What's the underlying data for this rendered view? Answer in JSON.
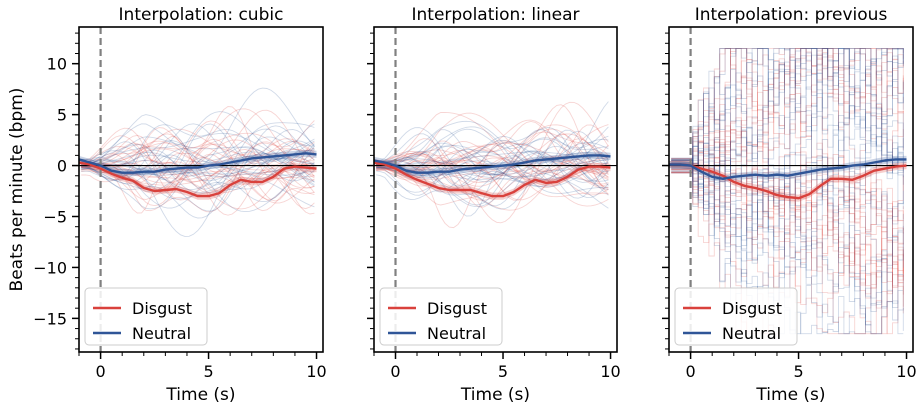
{
  "chart_data": [
    {
      "type": "line",
      "title": "Interpolation: cubic",
      "xlabel": "Time (s)",
      "ylabel": "Beats per minute (bpm)",
      "xlim": [
        -1,
        10.3
      ],
      "ylim": [
        -18.3,
        13.6
      ],
      "xticks": [
        0,
        5,
        10
      ],
      "yticks": [
        -15,
        -10,
        -5,
        0,
        5,
        10
      ],
      "legend": {
        "position": "lower-left",
        "entries": [
          "Disgust",
          "Neutral"
        ]
      },
      "reference_lines": {
        "vertical_dashed_x": 0,
        "horizontal_y": 0
      },
      "series": [
        {
          "name": "Disgust",
          "color": "#d9413c",
          "x": [
            -1,
            -0.5,
            0,
            0.5,
            1,
            1.5,
            2,
            2.5,
            3,
            3.5,
            4,
            4.5,
            5,
            5.5,
            6,
            6.5,
            7,
            7.5,
            8,
            8.5,
            9,
            9.5,
            10
          ],
          "values": [
            0.3,
            0.1,
            -0.3,
            -0.8,
            -1.2,
            -1.5,
            -2.2,
            -2.5,
            -2.4,
            -2.3,
            -2.6,
            -3.0,
            -3.0,
            -2.7,
            -1.9,
            -1.4,
            -1.6,
            -1.6,
            -1.1,
            -0.3,
            -0.1,
            -0.2,
            -0.3
          ]
        },
        {
          "name": "Neutral",
          "color": "#2f5597",
          "x": [
            -1,
            -0.5,
            0,
            0.5,
            1,
            1.5,
            2,
            2.5,
            3,
            3.5,
            4,
            4.5,
            5,
            5.5,
            6,
            6.5,
            7,
            7.5,
            8,
            8.5,
            9,
            9.5,
            10
          ],
          "values": [
            0.6,
            0.3,
            0.0,
            -0.5,
            -0.7,
            -0.7,
            -0.6,
            -0.6,
            -0.4,
            -0.3,
            -0.2,
            -0.2,
            0.0,
            0.1,
            0.3,
            0.5,
            0.7,
            0.8,
            0.9,
            1.0,
            1.1,
            1.2,
            1.1
          ]
        }
      ]
    },
    {
      "type": "line",
      "title": "Interpolation: linear",
      "xlabel": "Time (s)",
      "ylabel": "",
      "xlim": [
        -1,
        10.3
      ],
      "ylim": [
        -18.3,
        13.6
      ],
      "xticks": [
        0,
        5,
        10
      ],
      "yticks": [
        -15,
        -10,
        -5,
        0,
        5,
        10
      ],
      "legend": {
        "position": "lower-left",
        "entries": [
          "Disgust",
          "Neutral"
        ]
      },
      "reference_lines": {
        "vertical_dashed_x": 0,
        "horizontal_y": 0
      },
      "series": [
        {
          "name": "Disgust",
          "color": "#d9413c",
          "x": [
            -1,
            -0.5,
            0,
            0.5,
            1,
            1.5,
            2,
            2.5,
            3,
            3.5,
            4,
            4.5,
            5,
            5.5,
            6,
            6.5,
            7,
            7.5,
            8,
            8.5,
            9,
            9.5,
            10
          ],
          "values": [
            0.3,
            0.1,
            -0.3,
            -0.9,
            -1.4,
            -1.8,
            -2.2,
            -2.4,
            -2.4,
            -2.4,
            -2.7,
            -3.0,
            -3.0,
            -2.6,
            -1.9,
            -1.4,
            -1.7,
            -1.6,
            -1.1,
            -0.4,
            -0.1,
            -0.1,
            -0.2
          ]
        },
        {
          "name": "Neutral",
          "color": "#2f5597",
          "x": [
            -1,
            -0.5,
            0,
            0.5,
            1,
            1.5,
            2,
            2.5,
            3,
            3.5,
            4,
            4.5,
            5,
            5.5,
            6,
            6.5,
            7,
            7.5,
            8,
            8.5,
            9,
            9.5,
            10
          ],
          "values": [
            0.5,
            0.3,
            0.0,
            -0.5,
            -0.7,
            -0.7,
            -0.6,
            -0.6,
            -0.4,
            -0.3,
            -0.2,
            -0.1,
            0.0,
            0.1,
            0.3,
            0.5,
            0.6,
            0.7,
            0.8,
            0.9,
            1.0,
            1.0,
            0.9
          ]
        }
      ]
    },
    {
      "type": "line",
      "title": "Interpolation: previous",
      "xlabel": "Time (s)",
      "ylabel": "",
      "xlim": [
        -1,
        10.3
      ],
      "ylim": [
        -18.3,
        13.6
      ],
      "xticks": [
        0,
        5,
        10
      ],
      "yticks": [
        -15,
        -10,
        -5,
        0,
        5,
        10
      ],
      "legend": {
        "position": "lower-left",
        "entries": [
          "Disgust",
          "Neutral"
        ]
      },
      "reference_lines": {
        "vertical_dashed_x": 0,
        "horizontal_y": 0
      },
      "series": [
        {
          "name": "Disgust",
          "color": "#d9413c",
          "x": [
            -1,
            -0.5,
            0,
            0.5,
            1,
            1.5,
            2,
            2.5,
            3,
            3.5,
            4,
            4.5,
            5,
            5.5,
            6,
            6.5,
            7,
            7.5,
            8,
            8.5,
            9,
            9.5,
            10
          ],
          "values": [
            0.1,
            0.1,
            0.0,
            -0.3,
            -0.6,
            -1.0,
            -1.6,
            -2.0,
            -2.2,
            -2.5,
            -2.9,
            -3.1,
            -3.2,
            -2.8,
            -2.0,
            -1.3,
            -1.3,
            -1.4,
            -1.0,
            -0.5,
            -0.3,
            -0.1,
            0.0
          ]
        },
        {
          "name": "Neutral",
          "color": "#2f5597",
          "x": [
            -1,
            -0.5,
            0,
            0.5,
            1,
            1.5,
            2,
            2.5,
            3,
            3.5,
            4,
            4.5,
            5,
            5.5,
            6,
            6.5,
            7,
            7.5,
            8,
            8.5,
            9,
            9.5,
            10
          ],
          "values": [
            0.1,
            0.1,
            0.0,
            -0.6,
            -1.1,
            -1.3,
            -1.1,
            -1.0,
            -0.9,
            -1.0,
            -0.9,
            -1.0,
            -0.8,
            -0.6,
            -0.4,
            -0.3,
            -0.2,
            0.0,
            0.1,
            0.3,
            0.5,
            0.6,
            0.6
          ]
        }
      ]
    }
  ]
}
